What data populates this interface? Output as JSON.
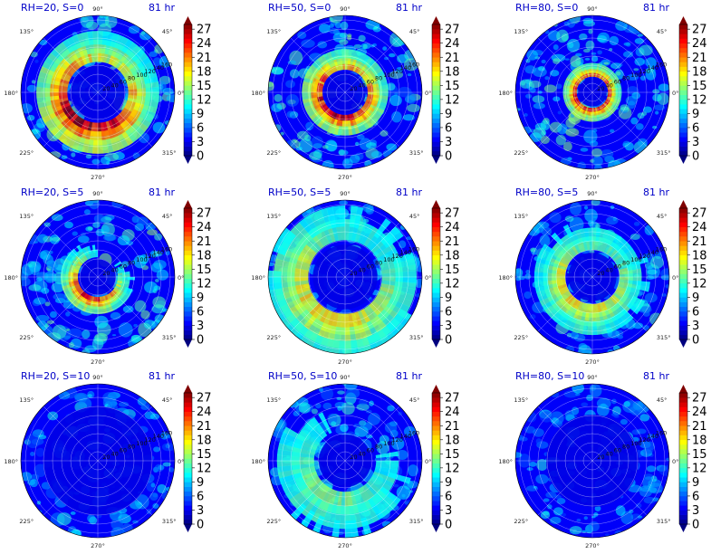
{
  "chart_data": {
    "type": "heatmap",
    "projection": "polar",
    "layout": {
      "rows": 3,
      "cols": 3
    },
    "angle_ticks": [
      "90°",
      "45°",
      "0°",
      "315°",
      "270°",
      "225°",
      "180°",
      "135°"
    ],
    "radial_ring_labels": [
      "20",
      "40",
      "60",
      "80",
      "100",
      "120",
      "140",
      "160"
    ],
    "colorbar": {
      "colormap": "jet",
      "range": [
        0,
        28
      ],
      "ticks": [
        "0",
        "3",
        "6",
        "9",
        "12",
        "15",
        "18",
        "21",
        "24",
        "27"
      ],
      "extend": "both"
    },
    "panels": [
      {
        "title": "RH=20, S=0",
        "time": "81 hr",
        "intensity": 1.0,
        "ring_r": 0.22,
        "ring_w": 0.18,
        "asym": 0.55
      },
      {
        "title": "RH=50, S=0",
        "time": "81 hr",
        "intensity": 0.9,
        "ring_r": 0.16,
        "ring_w": 0.12,
        "asym": 0.35
      },
      {
        "title": "RH=80, S=0",
        "time": "81 hr",
        "intensity": 0.85,
        "ring_r": 0.11,
        "ring_w": 0.08,
        "asym": 0.2
      },
      {
        "title": "RH=20, S=5",
        "time": "81 hr",
        "intensity": 0.85,
        "ring_r": 0.14,
        "ring_w": 0.1,
        "asym": 0.85
      },
      {
        "title": "RH=50, S=5",
        "time": "81 hr",
        "intensity": 0.55,
        "ring_r": 0.28,
        "ring_w": 0.28,
        "asym": 0.6
      },
      {
        "title": "RH=80, S=5",
        "time": "81 hr",
        "intensity": 0.55,
        "ring_r": 0.2,
        "ring_w": 0.18,
        "asym": 0.5
      },
      {
        "title": "RH=20, S=10",
        "time": "81 hr",
        "intensity": 0.12,
        "ring_r": 0.45,
        "ring_w": 0.4,
        "asym": 0.9
      },
      {
        "title": "RH=50, S=10",
        "time": "81 hr",
        "intensity": 0.35,
        "ring_r": 0.25,
        "ring_w": 0.3,
        "asym": 0.7
      },
      {
        "title": "RH=80, S=10",
        "time": "81 hr",
        "intensity": 0.1,
        "ring_r": 0.4,
        "ring_w": 0.4,
        "asym": 0.6
      }
    ]
  }
}
